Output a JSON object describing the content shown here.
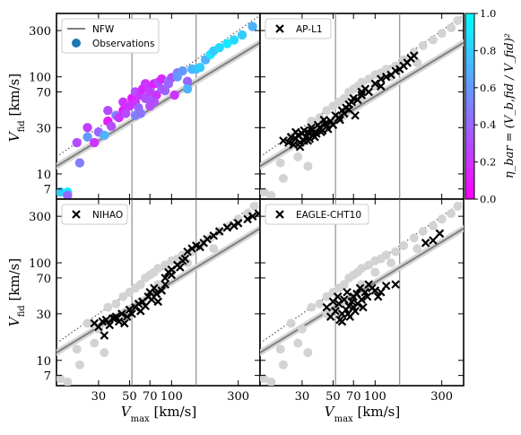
{
  "figure": {
    "y_axis_label_base": "V",
    "y_axis_label_sub": "fid",
    "y_axis_label_unit": " [km/s]",
    "x_axis_label_base": "V",
    "x_axis_label_sub": "max",
    "x_axis_label_unit": " [km/s]",
    "colorbar_label": "η_bar = (V_b,fid / V_fid)²",
    "colorbar_ticks": [
      "0.0",
      "0.2",
      "0.4",
      "0.6",
      "0.8",
      "1.0"
    ],
    "colorbar_colors": [
      "#ff00ff",
      "#00ffff"
    ],
    "x_ticks": [
      "30",
      "50",
      "70",
      "100",
      "300"
    ],
    "y_ticks": [
      "7",
      "10",
      "30",
      "70",
      "100",
      "300"
    ]
  },
  "chart_data": [
    {
      "type": "scatter",
      "panel": "top-left",
      "x_scale": "log",
      "y_scale": "log",
      "xlim": [
        15,
        430
      ],
      "ylim": [
        5.5,
        450
      ],
      "grid": false,
      "vertical_lines": [
        52,
        150
      ],
      "legend_position": "top-left",
      "legend": [
        "NFW",
        "Observations"
      ],
      "nfw_curve": {
        "x": [
          15,
          430
        ],
        "y": [
          12,
          225
        ]
      },
      "one_to_one_line": {
        "x": [
          15,
          430
        ],
        "y": [
          15,
          430
        ]
      },
      "series": [
        {
          "name": "Observations",
          "marker": "circle-colored",
          "x": [
            16,
            18,
            18,
            21,
            22,
            25,
            28,
            30,
            33,
            35,
            37,
            40,
            42,
            45,
            47,
            50,
            52,
            55,
            55,
            58,
            60,
            62,
            65,
            68,
            70,
            72,
            75,
            78,
            80,
            85,
            90,
            95,
            100,
            105,
            110,
            120,
            130,
            140,
            150,
            160,
            175,
            190,
            200,
            220,
            250,
            280,
            320,
            380,
            25,
            35,
            45,
            55,
            65,
            75,
            85,
            95,
            110,
            130,
            60,
            70
          ],
          "y": [
            6.5,
            6.5,
            6.0,
            21,
            13,
            24,
            21,
            27,
            25,
            35,
            31,
            40,
            38,
            45,
            42,
            50,
            60,
            55,
            70,
            48,
            65,
            75,
            60,
            80,
            70,
            58,
            85,
            65,
            88,
            95,
            72,
            90,
            98,
            65,
            110,
            115,
            90,
            120,
            120,
            125,
            150,
            170,
            185,
            200,
            220,
            240,
            270,
            330,
            30,
            45,
            55,
            40,
            85,
            55,
            75,
            85,
            100,
            75,
            42,
            50
          ],
          "eta_bar": [
            0.8,
            0.9,
            0.4,
            0.3,
            0.5,
            0.6,
            0.2,
            0.4,
            0.7,
            0.1,
            0.3,
            0.5,
            0.2,
            0.1,
            0.3,
            0.2,
            0.1,
            0.2,
            0.3,
            0.4,
            0.2,
            0.15,
            0.3,
            0.2,
            0.25,
            0.35,
            0.1,
            0.2,
            0.3,
            0.15,
            0.4,
            0.5,
            0.3,
            0.2,
            0.5,
            0.6,
            0.4,
            0.7,
            0.75,
            0.8,
            0.7,
            0.9,
            0.8,
            0.85,
            0.9,
            0.85,
            0.8,
            0.7,
            0.25,
            0.3,
            0.2,
            0.5,
            0.2,
            0.3,
            0.35,
            0.4,
            0.6,
            0.7,
            0.45,
            0.3
          ]
        }
      ]
    },
    {
      "type": "scatter",
      "panel": "top-right",
      "x_scale": "log",
      "y_scale": "log",
      "xlim": [
        15,
        430
      ],
      "ylim": [
        5.5,
        450
      ],
      "vertical_lines": [
        52,
        150
      ],
      "legend_position": "top-left",
      "legend": [
        "AP-L1"
      ],
      "nfw_curve": {
        "x": [
          15,
          430
        ],
        "y": [
          12,
          225
        ]
      },
      "one_to_one_line": {
        "x": [
          15,
          430
        ],
        "y": [
          15,
          430
        ]
      },
      "series": [
        {
          "name": "AP-L1",
          "marker": "x",
          "x": [
            22,
            24,
            25,
            26,
            27,
            28,
            29,
            30,
            31,
            32,
            33,
            34,
            35,
            36,
            38,
            40,
            42,
            44,
            46,
            48,
            50,
            52,
            55,
            58,
            60,
            62,
            65,
            68,
            70,
            75,
            80,
            85,
            90,
            100,
            110,
            120,
            130,
            140,
            150,
            160,
            170,
            180,
            190,
            27,
            29,
            31,
            33,
            35,
            37,
            39,
            41,
            43,
            45,
            56,
            65,
            72,
            80,
            110
          ],
          "y": [
            22,
            21,
            24,
            20,
            23,
            25,
            21,
            26,
            22,
            24,
            27,
            23,
            28,
            25,
            26,
            30,
            28,
            33,
            29,
            35,
            32,
            40,
            38,
            45,
            42,
            48,
            52,
            55,
            60,
            58,
            65,
            75,
            70,
            85,
            95,
            100,
            105,
            115,
            120,
            130,
            140,
            155,
            165,
            27,
            19,
            28,
            22,
            30,
            24,
            32,
            27,
            36,
            31,
            36,
            46,
            40,
            70,
            80
          ]
        },
        {
          "name": "Observations",
          "marker": "circle-gray",
          "x": [
            16,
            18,
            21,
            25,
            30,
            35,
            40,
            45,
            50,
            55,
            60,
            65,
            70,
            75,
            80,
            90,
            100,
            110,
            120,
            140,
            160,
            190,
            220,
            260,
            300,
            350,
            390,
            22,
            28,
            33,
            45,
            60,
            80,
            100,
            130,
            200
          ],
          "y": [
            6.5,
            6.0,
            13,
            24,
            21,
            35,
            38,
            45,
            50,
            55,
            60,
            70,
            75,
            80,
            88,
            95,
            105,
            110,
            120,
            130,
            150,
            180,
            210,
            240,
            280,
            320,
            380,
            9,
            15,
            12,
            30,
            40,
            60,
            80,
            100,
            140
          ]
        }
      ]
    },
    {
      "type": "scatter",
      "panel": "bottom-left",
      "x_scale": "log",
      "y_scale": "log",
      "xlim": [
        15,
        430
      ],
      "ylim": [
        5.5,
        450
      ],
      "vertical_lines": [
        52,
        150
      ],
      "legend_position": "top-left",
      "legend": [
        "NIHAO"
      ],
      "nfw_curve": {
        "x": [
          15,
          430
        ],
        "y": [
          12,
          225
        ]
      },
      "one_to_one_line": {
        "x": [
          15,
          430
        ],
        "y": [
          15,
          430
        ]
      },
      "series": [
        {
          "name": "NIHAO",
          "marker": "x",
          "x": [
            28,
            30,
            32,
            34,
            36,
            38,
            40,
            42,
            44,
            46,
            48,
            50,
            52,
            55,
            58,
            60,
            62,
            65,
            68,
            70,
            72,
            75,
            78,
            80,
            85,
            90,
            100,
            110,
            115,
            120,
            125,
            130,
            140,
            150,
            160,
            170,
            180,
            200,
            220,
            250,
            280,
            300,
            350,
            380,
            420,
            90,
            95,
            100,
            33,
            39
          ],
          "y": [
            24,
            22,
            25,
            26,
            23,
            27,
            28,
            25,
            30,
            24,
            28,
            33,
            30,
            35,
            38,
            32,
            40,
            36,
            45,
            50,
            42,
            55,
            48,
            40,
            52,
            60,
            85,
            95,
            90,
            105,
            110,
            130,
            140,
            150,
            145,
            160,
            175,
            190,
            210,
            230,
            240,
            255,
            280,
            300,
            320,
            70,
            80,
            75,
            18,
            27
          ]
        },
        {
          "name": "Observations",
          "marker": "circle-gray",
          "x": [
            16,
            18,
            21,
            25,
            30,
            35,
            40,
            45,
            50,
            55,
            60,
            65,
            70,
            75,
            80,
            90,
            100,
            110,
            120,
            140,
            160,
            190,
            220,
            260,
            300,
            350,
            390,
            22,
            28,
            33,
            45,
            60,
            80,
            100,
            130,
            200
          ],
          "y": [
            6.5,
            6.0,
            13,
            24,
            21,
            35,
            38,
            45,
            50,
            55,
            60,
            70,
            75,
            80,
            88,
            95,
            105,
            110,
            120,
            130,
            150,
            180,
            210,
            240,
            280,
            320,
            380,
            9,
            15,
            12,
            30,
            40,
            60,
            80,
            100,
            140
          ]
        }
      ]
    },
    {
      "type": "scatter",
      "panel": "bottom-right",
      "x_scale": "log",
      "y_scale": "log",
      "xlim": [
        15,
        430
      ],
      "ylim": [
        5.5,
        450
      ],
      "vertical_lines": [
        52,
        150
      ],
      "legend_position": "top-left",
      "legend": [
        "EAGLE-CHT10"
      ],
      "nfw_curve": {
        "x": [
          15,
          430
        ],
        "y": [
          12,
          225
        ]
      },
      "one_to_one_line": {
        "x": [
          15,
          430
        ],
        "y": [
          15,
          430
        ]
      },
      "series": [
        {
          "name": "EAGLE-CHT10",
          "marker": "x",
          "x": [
            45,
            48,
            50,
            52,
            54,
            55,
            56,
            58,
            60,
            62,
            63,
            65,
            66,
            68,
            70,
            72,
            74,
            75,
            78,
            80,
            82,
            85,
            88,
            90,
            95,
            100,
            105,
            110,
            120,
            140,
            230,
            260,
            290,
            58,
            64,
            70
          ],
          "y": [
            35,
            28,
            40,
            32,
            45,
            38,
            26,
            30,
            42,
            33,
            50,
            36,
            28,
            40,
            45,
            32,
            48,
            38,
            55,
            42,
            35,
            50,
            45,
            60,
            55,
            52,
            45,
            50,
            58,
            60,
            160,
            170,
            200,
            25,
            30,
            35
          ]
        },
        {
          "name": "Observations",
          "marker": "circle-gray",
          "x": [
            16,
            18,
            21,
            25,
            30,
            35,
            40,
            45,
            50,
            55,
            60,
            65,
            70,
            75,
            80,
            90,
            100,
            110,
            120,
            140,
            160,
            190,
            220,
            260,
            300,
            350,
            390,
            22,
            28,
            33,
            45,
            60,
            80,
            100,
            130,
            200
          ],
          "y": [
            6.5,
            6.0,
            13,
            24,
            21,
            35,
            38,
            45,
            50,
            55,
            60,
            70,
            75,
            80,
            88,
            95,
            105,
            110,
            120,
            130,
            150,
            180,
            210,
            240,
            280,
            320,
            380,
            9,
            15,
            12,
            30,
            40,
            60,
            80,
            100,
            140
          ]
        }
      ]
    }
  ]
}
